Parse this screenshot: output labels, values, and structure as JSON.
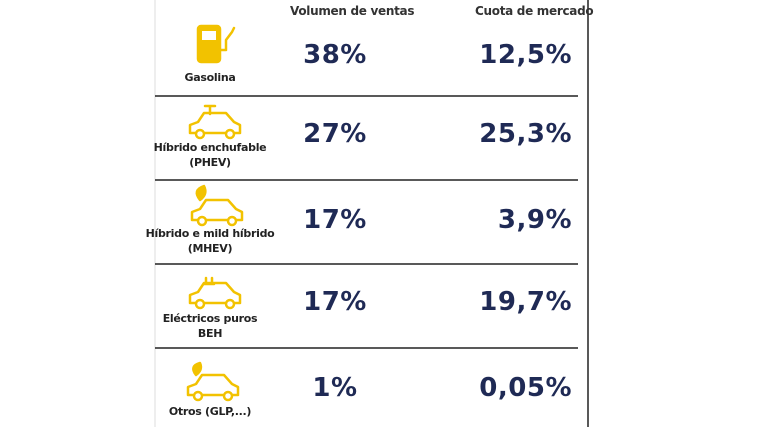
{
  "header": {
    "columns": [
      "Volumen de ventas",
      "Cuota de mercado"
    ]
  },
  "rows": [
    {
      "label": [
        "Gasolina"
      ],
      "volumen": "38%",
      "cuota": "12,5%"
    },
    {
      "label": [
        "Híbrido enchufable",
        "(PHEV)"
      ],
      "volumen": "27%",
      "cuota": "25,3%"
    },
    {
      "label": [
        "Híbrido e mild híbrido",
        "(MHEV)"
      ],
      "volumen": "17%",
      "cuota": "3,9%"
    },
    {
      "label": [
        "Eléctricos puros",
        "BEH"
      ],
      "volumen": "17%",
      "cuota": "19,7%"
    },
    {
      "label": [
        "Otros (GLP,...)"
      ],
      "volumen": "1%",
      "cuota": "0,05%"
    }
  ]
}
